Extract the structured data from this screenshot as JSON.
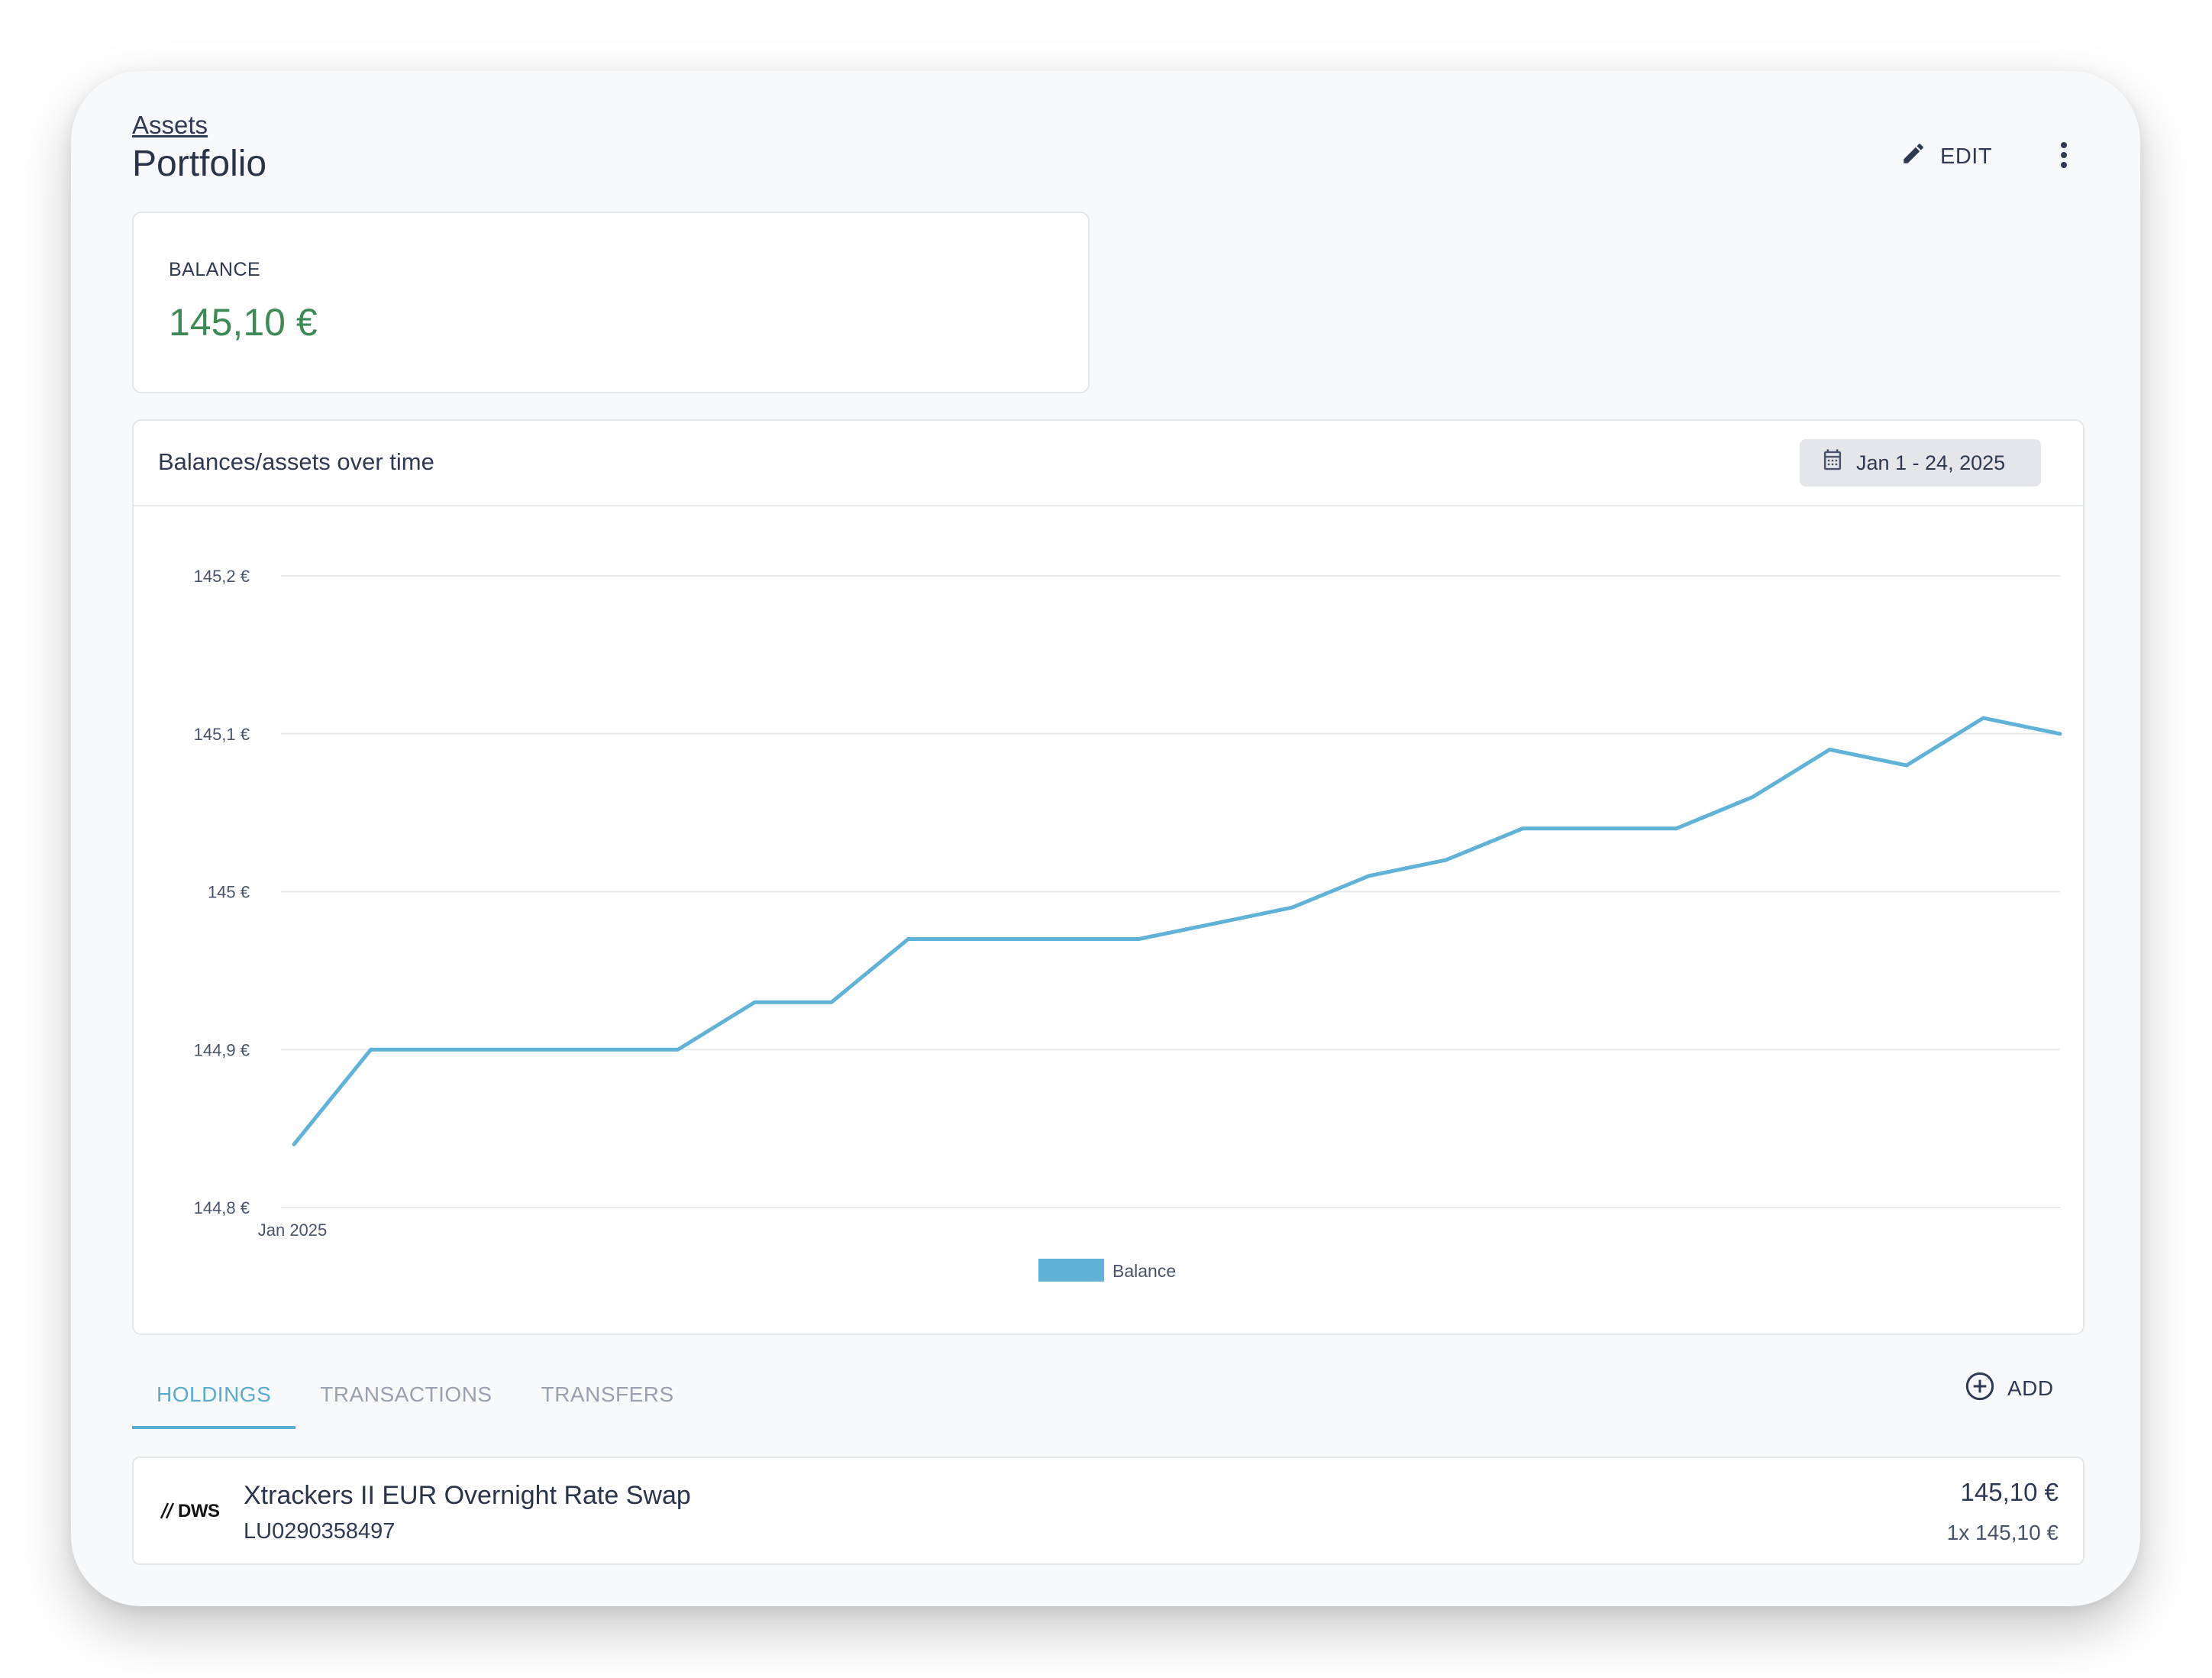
{
  "header": {
    "breadcrumb": "Assets",
    "title": "Portfolio",
    "edit_label": "EDIT"
  },
  "balance": {
    "label": "BALANCE",
    "value": "145,10 €"
  },
  "chart_card": {
    "title": "Balances/assets over time",
    "date_range": "Jan 1 - 24, 2025"
  },
  "chart_data": {
    "type": "line",
    "x": [
      "2025-01-01",
      "2025-01-02",
      "2025-01-03",
      "2025-01-04",
      "2025-01-05",
      "2025-01-06",
      "2025-01-07",
      "2025-01-08",
      "2025-01-09",
      "2025-01-10",
      "2025-01-11",
      "2025-01-12",
      "2025-01-13",
      "2025-01-14",
      "2025-01-15",
      "2025-01-16",
      "2025-01-17",
      "2025-01-18",
      "2025-01-19",
      "2025-01-20",
      "2025-01-21",
      "2025-01-22",
      "2025-01-23",
      "2025-01-24"
    ],
    "series": [
      {
        "name": "Balance",
        "color": "#60b2d6",
        "values": [
          144.84,
          144.9,
          144.9,
          144.9,
          144.9,
          144.9,
          144.93,
          144.93,
          144.97,
          144.97,
          144.97,
          144.97,
          144.98,
          144.99,
          145.01,
          145.02,
          145.04,
          145.04,
          145.04,
          145.06,
          145.09,
          145.08,
          145.11,
          145.1
        ]
      }
    ],
    "ylim": [
      144.8,
      145.2
    ],
    "y_ticks": [
      "145,2 €",
      "145,1 €",
      "145 €",
      "144,9 €",
      "144,8 €"
    ],
    "x_ticks": [
      "Jan 2025"
    ],
    "grid": true,
    "legend": "bottom-center"
  },
  "tabs": [
    {
      "label": "HOLDINGS",
      "active": true
    },
    {
      "label": "TRANSACTIONS",
      "active": false
    },
    {
      "label": "TRANSFERS",
      "active": false
    }
  ],
  "add_label": "ADD",
  "holdings": [
    {
      "logo_text": "DWS",
      "name": "Xtrackers II EUR Overnight Rate Swap",
      "isin": "LU0290358497",
      "value": "145,10 €",
      "quantity": "1x 145,10 €"
    }
  ],
  "colors": {
    "accent": "#5aaccf",
    "positive": "#3d8a57",
    "line": "#60b2d6"
  }
}
